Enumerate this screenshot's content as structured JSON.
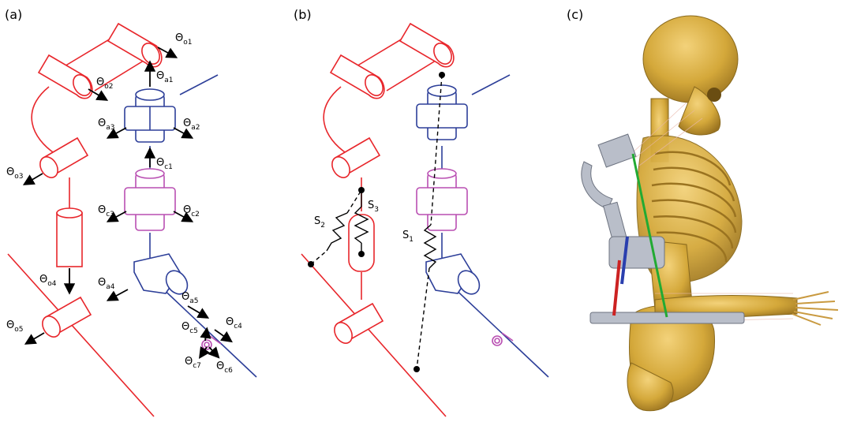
{
  "panels": {
    "a": "(a)",
    "b": "(b)",
    "c": "(c)"
  },
  "theta_symbol": "Θ",
  "angle_labels": {
    "o1": "o1",
    "o2": "o2",
    "o3": "o3",
    "o4": "o4",
    "o5": "o5",
    "a1": "a1",
    "a2": "a2",
    "a3": "a3",
    "a4": "a4",
    "a5": "a5",
    "c1": "c1",
    "c2": "c2",
    "c3": "c3",
    "c4": "c4",
    "c5": "c5",
    "c6": "c6",
    "c7": "c7"
  },
  "spring_labels": {
    "s1": "1",
    "s2": "2",
    "s3": "3"
  },
  "spring_letter": "S",
  "colors": {
    "exoskeleton": "#e8262b",
    "shoulder_anatomical": "#2d3f99",
    "constraint": "#b94fb2",
    "bone": "#d4a83a"
  }
}
